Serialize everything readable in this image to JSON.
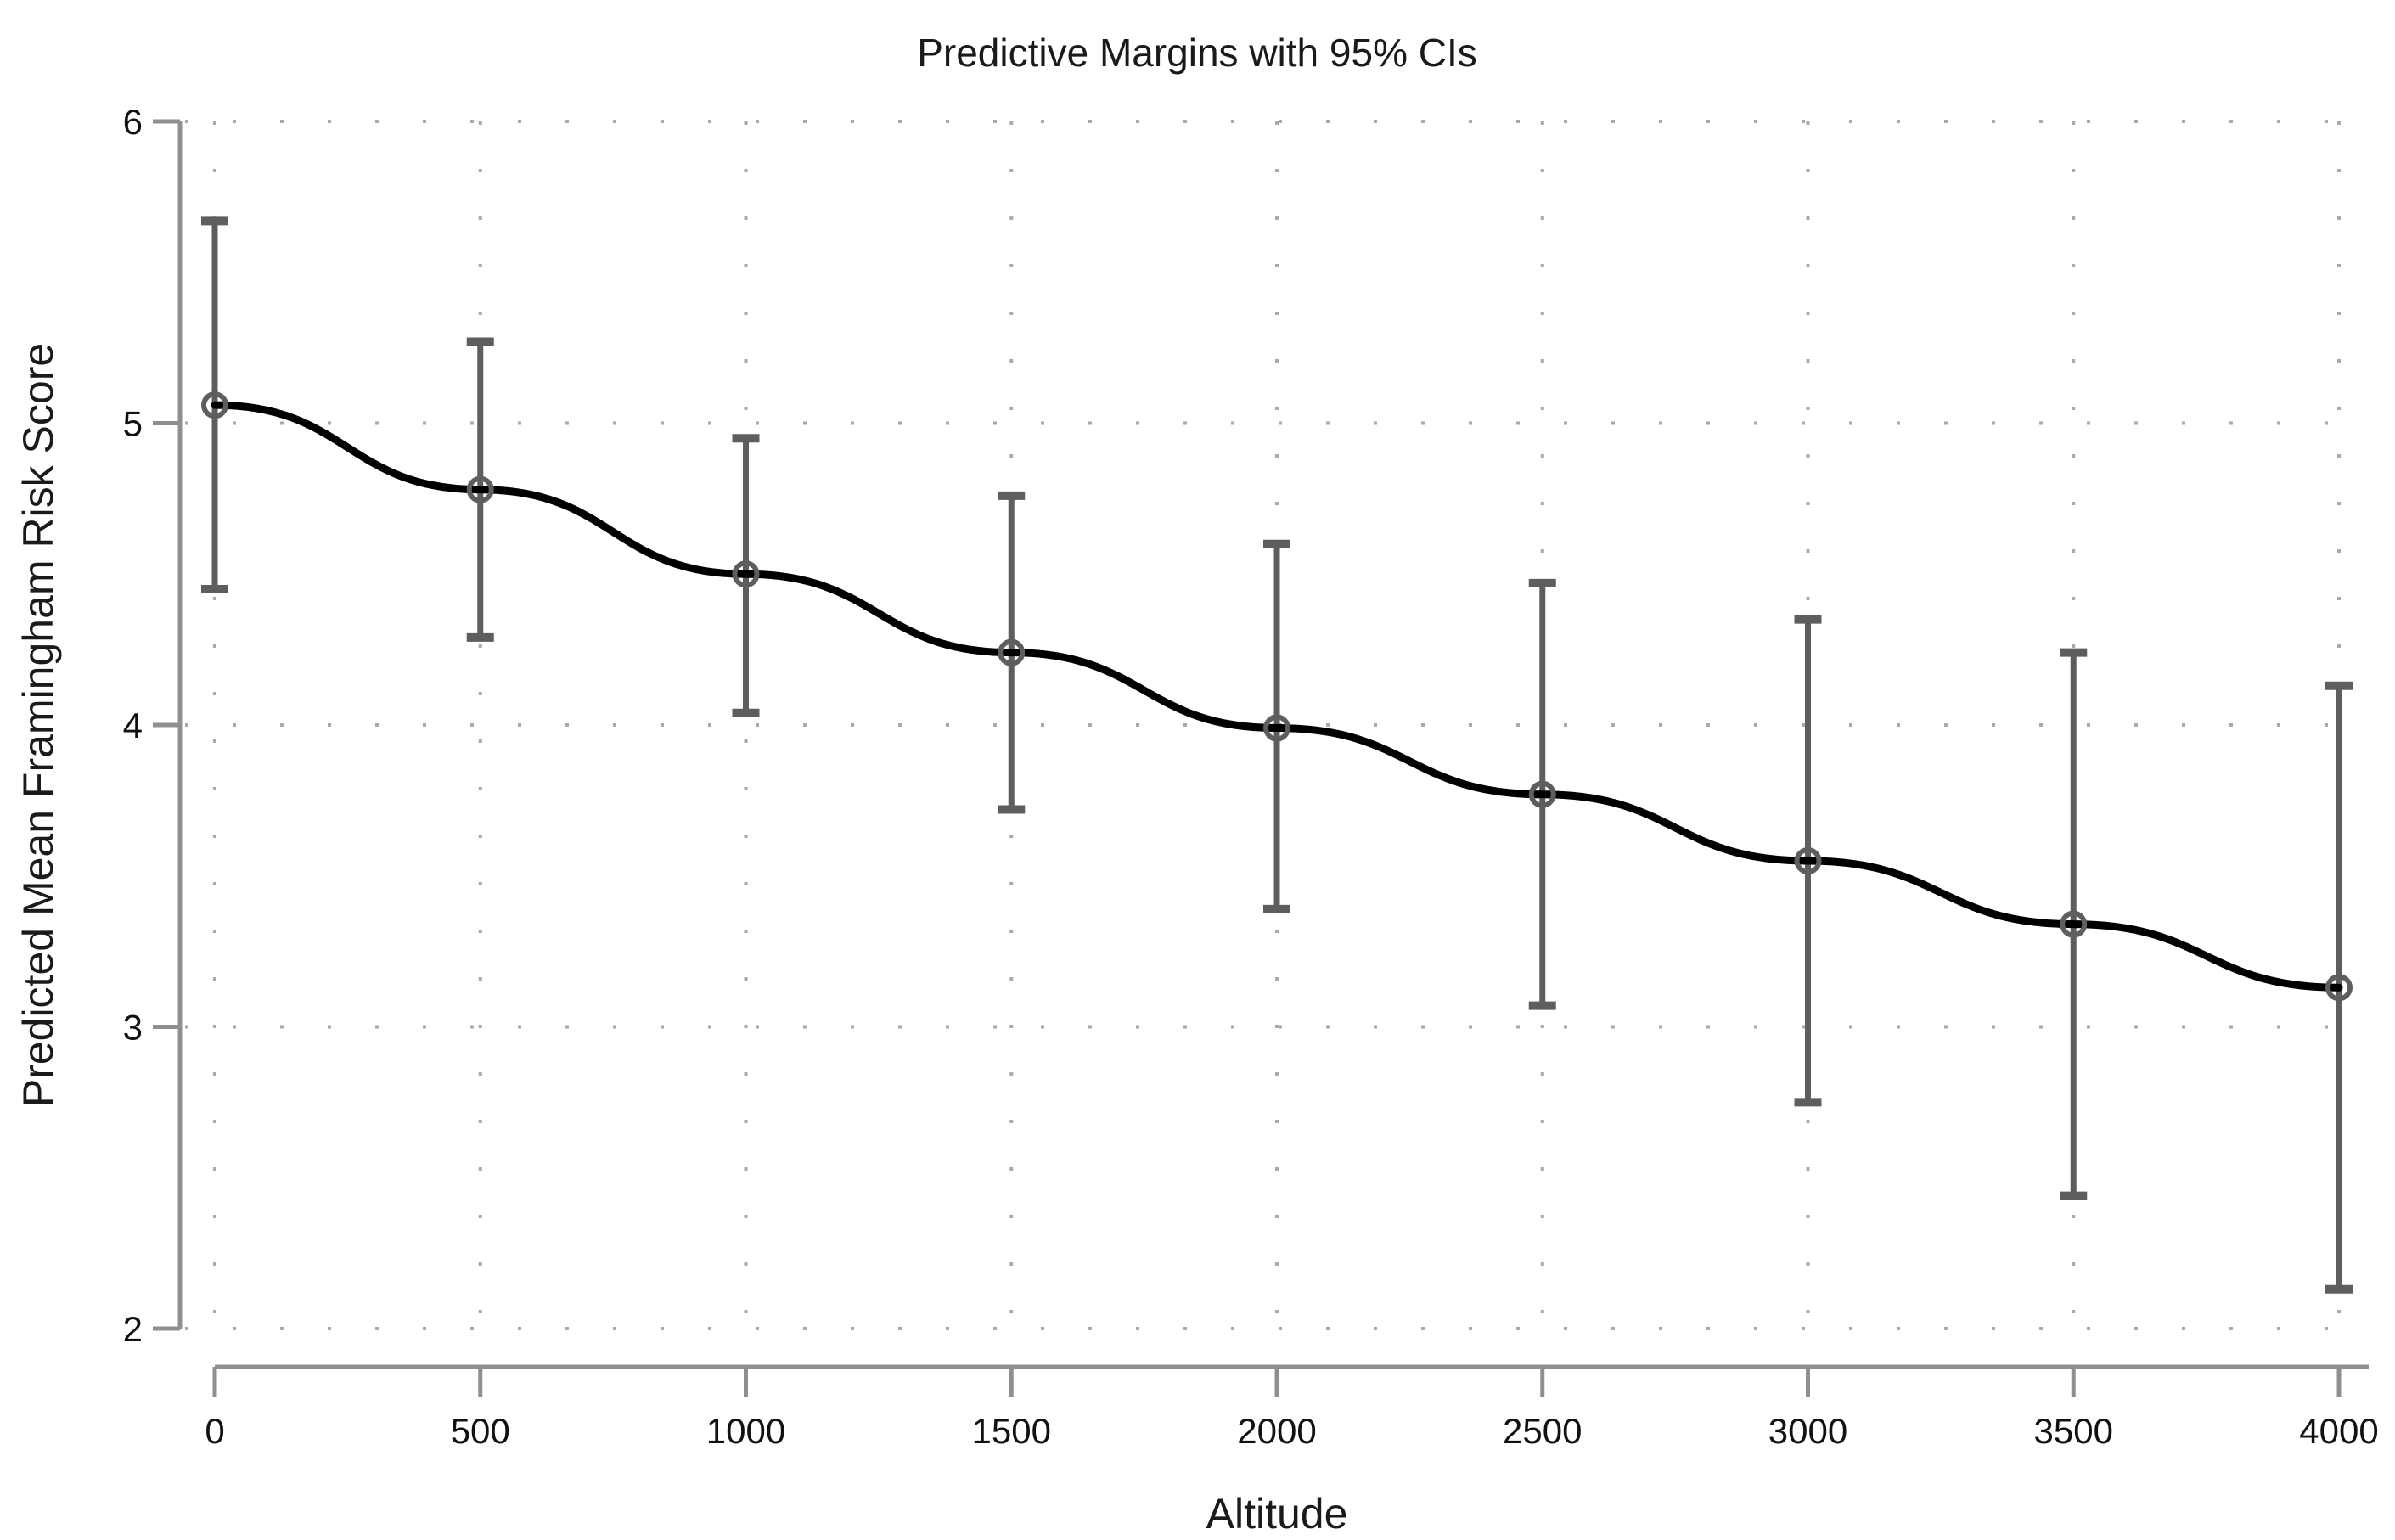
{
  "title": "Predictive Margins with 95% CIs",
  "chart_data": {
    "type": "line",
    "title": "Predictive Margins with 95% CIs",
    "xlabel": "Altitude",
    "ylabel": "Predicted Mean Framingham Risk Score",
    "x": [
      0,
      500,
      1000,
      1500,
      2000,
      2500,
      3000,
      3500,
      4000
    ],
    "series": [
      {
        "name": "Predicted Mean Framingham Risk Score",
        "values": [
          5.06,
          4.78,
          4.5,
          4.24,
          3.99,
          3.77,
          3.55,
          3.34,
          3.13
        ]
      }
    ],
    "ci_lower": [
      4.45,
      4.29,
      4.04,
      3.72,
      3.39,
      3.07,
      2.75,
      2.44,
      2.13
    ],
    "ci_upper": [
      5.67,
      5.27,
      4.95,
      4.76,
      4.6,
      4.47,
      4.35,
      4.24,
      4.13
    ],
    "ci_level": "95%",
    "xticks": [
      0,
      500,
      1000,
      1500,
      2000,
      2500,
      3000,
      3500,
      4000
    ],
    "yticks": [
      2,
      3,
      4,
      5,
      6
    ],
    "xlim": [
      0,
      4000
    ],
    "ylim": [
      2,
      6
    ],
    "grid": "dotted, both directions at every tick",
    "legend": "none",
    "marker": "hollow-circle"
  },
  "colors": {
    "background": "#ffffff",
    "trend_line": "#000000",
    "error_bar": "#5e5e5e",
    "marker_stroke": "#5e5e5e",
    "axis_line": "#8f8f8f",
    "gridline_dot": "#a9a9a9",
    "text": "#1a1a1a"
  }
}
